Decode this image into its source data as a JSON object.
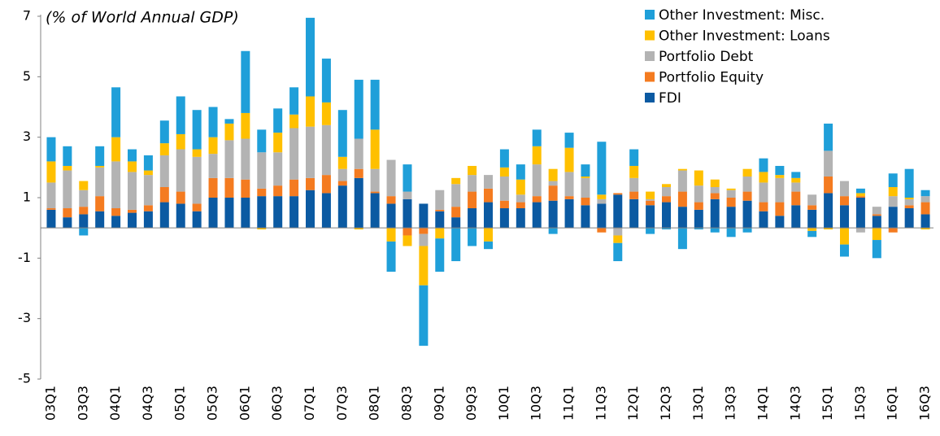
{
  "chart_data": {
    "type": "stacked_bar",
    "title": "(% of World Annual GDP)",
    "categories": [
      "03Q1",
      null,
      "03Q3",
      null,
      "04Q1",
      null,
      "04Q3",
      null,
      "05Q1",
      null,
      "05Q3",
      null,
      "06Q1",
      null,
      "06Q3",
      null,
      "07Q1",
      null,
      "07Q3",
      null,
      "08Q1",
      null,
      "08Q3",
      null,
      "09Q1",
      null,
      "09Q3",
      null,
      "10Q1",
      null,
      "10Q3",
      null,
      "11Q1",
      null,
      "11Q3",
      null,
      "12Q1",
      null,
      "12Q3",
      null,
      "13Q1",
      null,
      "13Q3",
      null,
      "14Q1",
      null,
      "14Q3",
      null,
      "15Q1",
      null,
      "15Q3",
      null,
      "16Q1",
      null,
      "16Q3"
    ],
    "series": [
      {
        "name": "FDI",
        "color": "#0b5aa2",
        "values": [
          0.6,
          0.35,
          0.45,
          0.55,
          0.4,
          0.5,
          0.55,
          0.85,
          0.8,
          0.55,
          1.0,
          1.0,
          1.0,
          1.05,
          1.05,
          1.05,
          1.25,
          1.15,
          1.4,
          1.65,
          1.15,
          0.8,
          0.95,
          0.8,
          0.55,
          0.35,
          0.65,
          0.85,
          0.65,
          0.65,
          0.85,
          0.9,
          0.95,
          0.75,
          0.8,
          1.1,
          0.95,
          0.75,
          0.85,
          0.7,
          0.6,
          0.95,
          0.7,
          0.9,
          0.55,
          0.4,
          0.75,
          0.6,
          1.15,
          0.75,
          1.0,
          0.4,
          0.7,
          0.65,
          0.45
        ]
      },
      {
        "name": "Portfolio Equity",
        "color": "#f47b20",
        "values": [
          0.05,
          0.3,
          0.25,
          0.5,
          0.25,
          0.1,
          0.2,
          0.5,
          0.4,
          0.25,
          0.65,
          0.65,
          0.6,
          0.25,
          0.35,
          0.55,
          0.4,
          0.6,
          0.15,
          0.3,
          0.05,
          0.25,
          -0.25,
          -0.2,
          0.05,
          0.35,
          0.55,
          0.45,
          0.25,
          0.2,
          0.2,
          0.5,
          0.1,
          0.25,
          -0.15,
          0.05,
          0.25,
          0.15,
          0.2,
          0.5,
          0.25,
          0.2,
          0.3,
          0.3,
          0.3,
          0.45,
          0.45,
          0.15,
          0.55,
          0.3,
          0.05,
          0.05,
          -0.15,
          0.1,
          0.4
        ]
      },
      {
        "name": "Portfolio Debt",
        "color": "#b3b3b3",
        "values": [
          0.85,
          1.25,
          0.55,
          0.95,
          1.55,
          1.25,
          1.0,
          1.05,
          1.4,
          1.55,
          0.8,
          1.25,
          1.35,
          1.2,
          1.1,
          1.7,
          1.7,
          1.65,
          0.4,
          1.0,
          0.75,
          1.2,
          0.25,
          -0.4,
          0.65,
          0.75,
          0.55,
          0.45,
          0.8,
          0.25,
          1.05,
          0.15,
          0.8,
          0.65,
          0.15,
          -0.25,
          0.45,
          0.05,
          0.3,
          0.7,
          0.55,
          0.2,
          0.25,
          0.5,
          0.65,
          0.8,
          0.3,
          0.35,
          0.85,
          0.5,
          -0.15,
          0.25,
          0.35,
          0.2,
          0.2
        ]
      },
      {
        "name": "Other Investment: Loans",
        "color": "#ffc000",
        "values": [
          0.7,
          0.15,
          0.3,
          0.05,
          0.8,
          0.35,
          0.15,
          0.4,
          0.5,
          0.25,
          0.55,
          0.55,
          0.85,
          -0.05,
          0.65,
          0.45,
          1.0,
          0.75,
          0.4,
          -0.05,
          1.3,
          -0.45,
          -0.35,
          -1.3,
          -0.35,
          0.2,
          0.3,
          -0.45,
          0.3,
          0.5,
          0.6,
          0.4,
          0.8,
          0.05,
          0.15,
          -0.25,
          0.4,
          0.25,
          0.1,
          0.05,
          0.5,
          0.25,
          0.05,
          0.25,
          0.35,
          0.1,
          0.15,
          -0.1,
          -0.05,
          -0.55,
          0.1,
          -0.4,
          0.3,
          0.05,
          -0.05
        ]
      },
      {
        "name": "Other Investment: Misc.",
        "color": "#1f9fd9",
        "values": [
          0.8,
          0.65,
          -0.25,
          0.65,
          1.65,
          0.4,
          0.5,
          0.75,
          1.25,
          1.3,
          1.0,
          0.15,
          2.05,
          0.75,
          0.8,
          0.9,
          2.6,
          1.45,
          1.55,
          1.95,
          1.65,
          -1.0,
          0.9,
          -2.0,
          -1.1,
          -1.1,
          -0.6,
          -0.25,
          0.6,
          0.5,
          0.55,
          -0.2,
          0.5,
          0.4,
          1.75,
          -0.6,
          0.55,
          -0.2,
          -0.05,
          -0.7,
          -0.05,
          -0.15,
          -0.3,
          -0.15,
          0.45,
          0.3,
          0.2,
          -0.2,
          0.9,
          -0.4,
          0.15,
          -0.6,
          0.45,
          0.95,
          0.2
        ]
      }
    ],
    "ylim": [
      -5,
      7
    ],
    "yticks": [
      -5,
      -3,
      -1,
      1,
      3,
      5,
      7
    ],
    "legend": "top-right"
  }
}
